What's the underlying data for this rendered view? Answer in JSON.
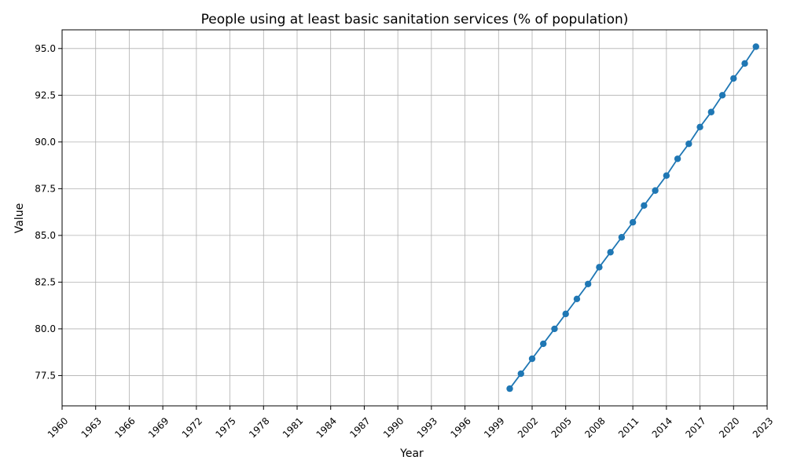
{
  "chart_data": {
    "type": "line",
    "title": "People using at least basic sanitation services (% of population)",
    "xlabel": "Year",
    "ylabel": "Value",
    "xlim": [
      1960,
      2023
    ],
    "ylim": [
      75.88,
      96.0
    ],
    "grid": true,
    "x_ticks": [
      1960,
      1963,
      1966,
      1969,
      1972,
      1975,
      1978,
      1981,
      1984,
      1987,
      1990,
      1993,
      1996,
      1999,
      2002,
      2005,
      2008,
      2011,
      2014,
      2017,
      2020,
      2023
    ],
    "x_tick_labels": [
      "1960",
      "1963",
      "1966",
      "1969",
      "1972",
      "1975",
      "1978",
      "1981",
      "1984",
      "1987",
      "1990",
      "1993",
      "1996",
      "1999",
      "2002",
      "2005",
      "2008",
      "2011",
      "2014",
      "2017",
      "2020",
      "2023"
    ],
    "y_ticks": [
      77.5,
      80.0,
      82.5,
      85.0,
      87.5,
      90.0,
      92.5,
      95.0
    ],
    "y_tick_labels": [
      "77.5",
      "80.0",
      "82.5",
      "85.0",
      "87.5",
      "90.0",
      "92.5",
      "95.0"
    ],
    "line_color": "#1f77b4",
    "series": [
      {
        "name": "Value",
        "x": [
          2000,
          2001,
          2002,
          2003,
          2004,
          2005,
          2006,
          2007,
          2008,
          2009,
          2010,
          2011,
          2012,
          2013,
          2014,
          2015,
          2016,
          2017,
          2018,
          2019,
          2020,
          2021,
          2022
        ],
        "values": [
          76.8,
          77.6,
          78.4,
          79.2,
          80.0,
          80.8,
          81.6,
          82.4,
          83.3,
          84.1,
          84.9,
          85.7,
          86.6,
          87.4,
          88.2,
          89.1,
          89.9,
          90.8,
          91.6,
          92.5,
          93.4,
          94.2,
          95.1
        ]
      }
    ]
  }
}
